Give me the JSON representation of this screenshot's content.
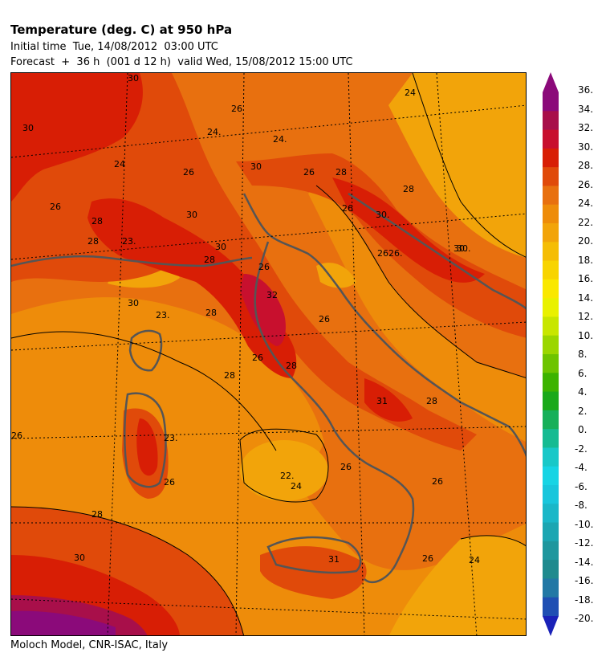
{
  "header": {
    "title": "Temperature (deg. C) at 950 hPa",
    "initial_time": "Initial time  Tue, 14/08/2012  03:00 UTC",
    "forecast": "Forecast  +  36 h  (001 d 12 h)  valid Wed, 15/08/2012 15:00 UTC"
  },
  "footer": {
    "credit": "Moloch Model, CNR-ISAC, Italy"
  },
  "colorbar": {
    "labels": [
      "36.",
      "34.",
      "32.",
      "30.",
      "28.",
      "26.",
      "24.",
      "22.",
      "20.",
      "18.",
      "16.",
      "14.",
      "12.",
      "10.",
      "8.",
      "6.",
      "4.",
      "2.",
      "0.",
      "-2.",
      "-4.",
      "-6.",
      "-8.",
      "-10.",
      "-12.",
      "-14.",
      "-16.",
      "-18.",
      "-20."
    ],
    "colors": [
      "#8b0a7a",
      "#a80f4a",
      "#c8102e",
      "#d81e05",
      "#e04a0a",
      "#e8700f",
      "#ee8c0a",
      "#f2a40a",
      "#f5bd05",
      "#f8d400",
      "#fae800",
      "#e9f100",
      "#c8e600",
      "#9bd600",
      "#6ec400",
      "#3db300",
      "#1aa91a",
      "#17b05a",
      "#16bb92",
      "#19c8c8",
      "#17d4e4",
      "#18c6dc",
      "#1ab7c8",
      "#1ca6b2",
      "#1f979e",
      "#1f8a8e",
      "#2278a5",
      "#1f4fb3",
      "#1a22b8"
    ]
  },
  "map": {
    "contour_labels": [
      "30",
      "26",
      "24",
      "24.",
      "24.",
      "24",
      "26",
      "28",
      "26",
      "26",
      "28",
      "30",
      "28",
      "26",
      "30",
      "30",
      "28",
      "23.",
      "30.",
      "28",
      "30.",
      "26",
      "26",
      "32",
      "23.",
      "30",
      "26",
      "26",
      "28",
      "31",
      "28",
      "23.",
      "26",
      "22.",
      "24",
      "26",
      "28",
      "30",
      "31",
      "26",
      "24",
      "26",
      "30",
      "28",
      "30.",
      "28",
      "26.",
      "26"
    ]
  }
}
